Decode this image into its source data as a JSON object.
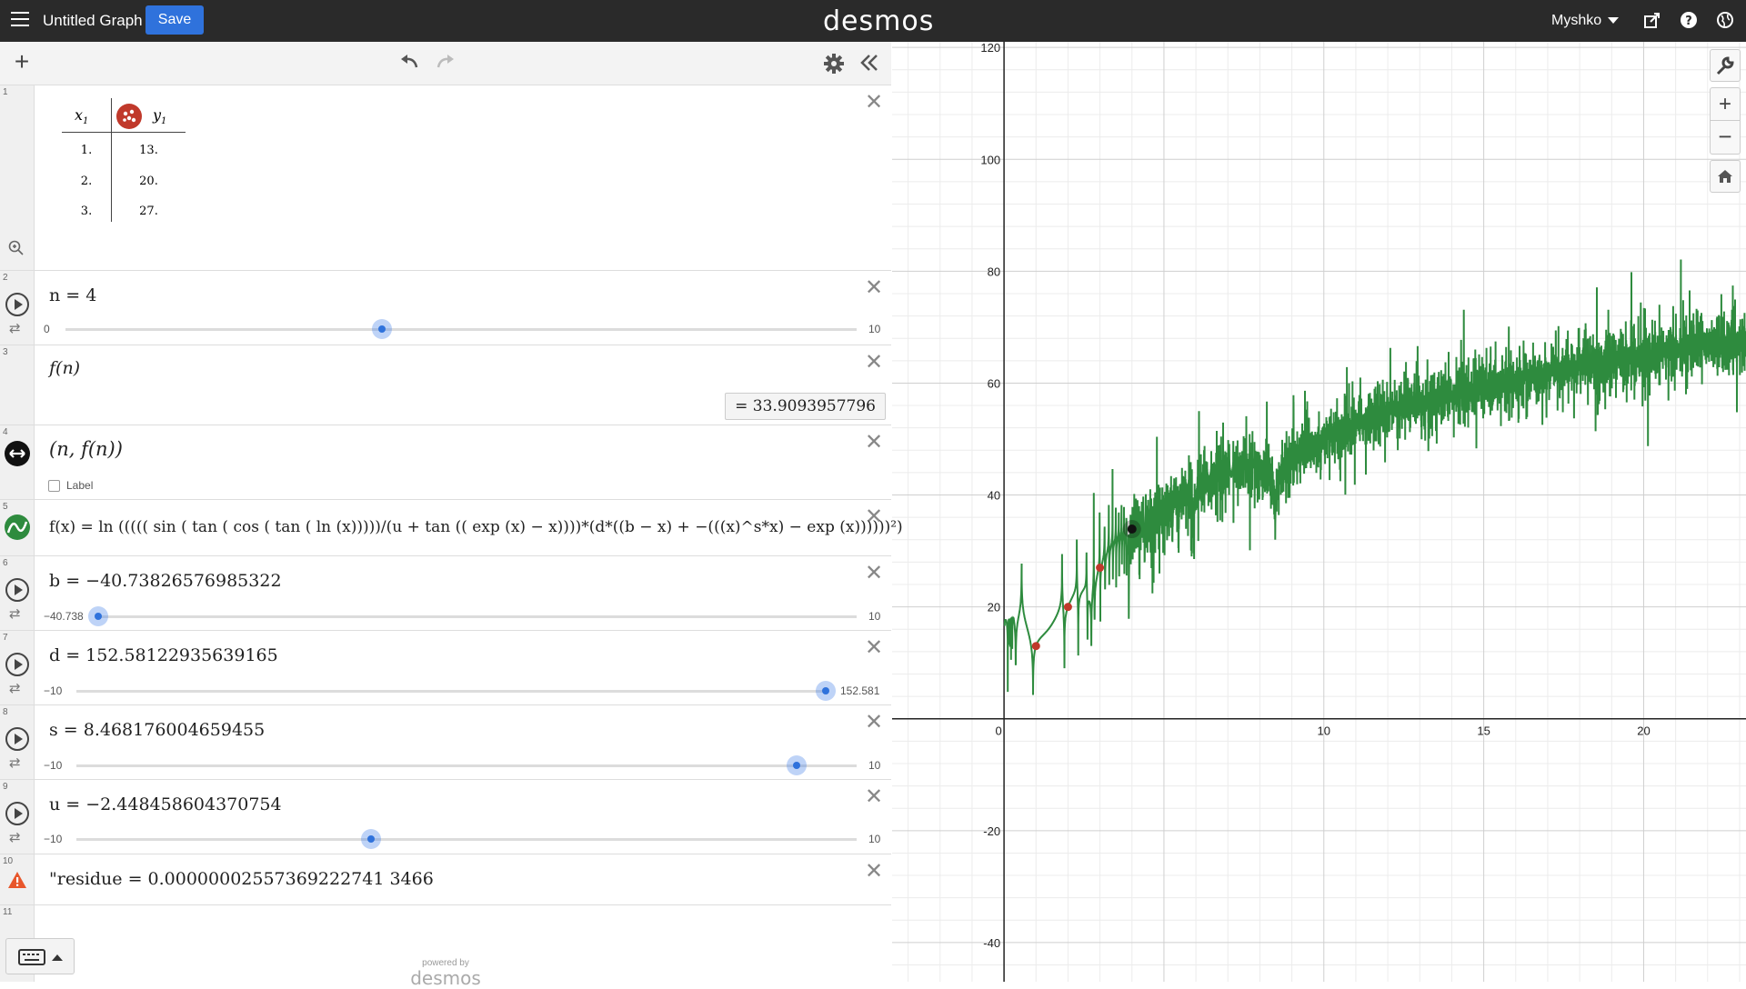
{
  "app": {
    "title": "Untitled Graph",
    "save_label": "Save",
    "logo": "desmos",
    "user": "Myshko",
    "powered_by": "powered by",
    "powered_logo": "desmos"
  },
  "colors": {
    "accent": "#2f72dc",
    "graph": "#2e8b3e",
    "table_point": "#c0392b",
    "warning": "#e8562b"
  },
  "table": {
    "col_x": "x",
    "col_x_sub": "1",
    "col_y": "y",
    "col_y_sub": "1",
    "rows": [
      {
        "x": "1.",
        "y": "13."
      },
      {
        "x": "2.",
        "y": "20."
      },
      {
        "x": "3.",
        "y": "27."
      }
    ]
  },
  "expressions": {
    "n": {
      "label": "n = 4",
      "min": "0",
      "max": "10",
      "value": 4,
      "range": [
        0,
        10
      ]
    },
    "fn": {
      "label": "f(n)",
      "result": "=  33.9093957796"
    },
    "point": {
      "label": "(n, f(n))",
      "checkbox_label": "Label"
    },
    "func": {
      "label": "f(x) = ln ((((( sin ( tan ( cos ( tan ( ln (x)))))/(u + tan (( exp (x) − x))))*(d*((b − x) + −(((x)^s*x) − exp (x))))))²)"
    },
    "b": {
      "label": "b = −40.73826576985322",
      "min": "−40.738",
      "max": "10",
      "value": -40.738,
      "range": [
        -40.738,
        10
      ]
    },
    "d": {
      "label": "d = 152.58122935639165",
      "min": "−10",
      "max": "152.581",
      "value": 152.581,
      "range": [
        -10,
        152.581
      ]
    },
    "s": {
      "label": "s = 8.468176004659455",
      "min": "−10",
      "max": "10",
      "value": 8.468,
      "range": [
        -10,
        10
      ]
    },
    "u": {
      "label": "u = −2.448458604370754",
      "min": "−10",
      "max": "10",
      "value": -2.448,
      "range": [
        -10,
        10
      ]
    },
    "residue": {
      "label": "\"residue = 0.00000002557369222741 3466"
    }
  },
  "indices": [
    "1",
    "2",
    "3",
    "4",
    "5",
    "6",
    "7",
    "8",
    "9",
    "10",
    "11"
  ],
  "graph": {
    "x_labels": [
      "0",
      "10",
      "15",
      "20"
    ],
    "y_labels": [
      "120",
      "100",
      "80",
      "60",
      "40",
      "20",
      "-20",
      "-40"
    ],
    "x_range": [
      -3.5,
      23.2
    ],
    "y_range": [
      -47,
      121
    ],
    "table_points": [
      [
        1,
        13
      ],
      [
        2,
        20
      ],
      [
        3,
        27
      ]
    ],
    "n_point": [
      4,
      33.909
    ]
  }
}
